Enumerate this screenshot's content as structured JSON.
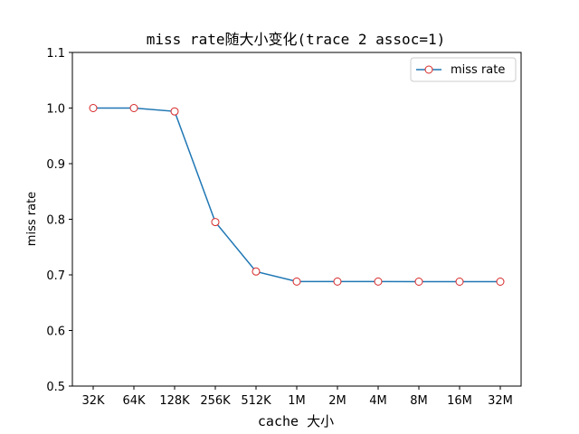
{
  "chart_data": {
    "type": "line",
    "title": "miss rate随大小变化(trace 2 assoc=1)",
    "xlabel": "cache 大小",
    "ylabel": "miss rate",
    "categories": [
      "32K",
      "64K",
      "128K",
      "256K",
      "512K",
      "1M",
      "2M",
      "4M",
      "8M",
      "16M",
      "32M"
    ],
    "series": [
      {
        "name": "miss rate",
        "values": [
          1.0,
          1.0,
          0.994,
          0.795,
          0.706,
          0.688,
          0.688,
          0.688,
          0.6878,
          0.6878,
          0.6878
        ]
      }
    ],
    "ylim": [
      0.5,
      1.1
    ],
    "yticks": [
      "0.5",
      "0.6",
      "0.7",
      "0.8",
      "0.9",
      "1.0",
      "1.1"
    ],
    "legend_position": "top-right",
    "grid": false,
    "colors": {
      "line": "#1f77b4",
      "marker_edge": "#d62728",
      "marker_face": "#ffffff"
    }
  }
}
